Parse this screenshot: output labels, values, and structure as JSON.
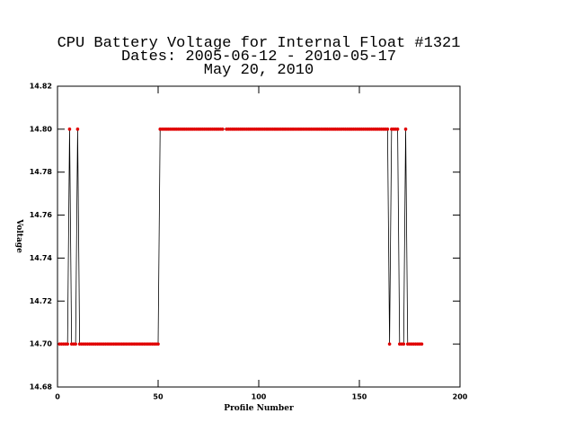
{
  "chart_data": {
    "type": "line",
    "title_lines": [
      "CPU Battery Voltage for Internal Float #1321",
      "Dates:  2005-06-12 -  2010-05-17",
      "May 20, 2010"
    ],
    "x_label": "Profile Number",
    "y_label": "Voltage",
    "xlim": [
      0,
      200
    ],
    "xticks": [
      0,
      50,
      100,
      150,
      200
    ],
    "ylim": [
      14.68,
      14.82
    ],
    "yticks": [
      14.68,
      {
        "value": 14.7,
        "label": "14.70"
      },
      14.72,
      14.74,
      14.76,
      14.78,
      {
        "value": 14.8,
        "label": "14.80"
      },
      14.82
    ],
    "line_color": "#000000",
    "marker_color": "#e00000",
    "x": [
      1,
      2,
      3,
      4,
      5,
      6,
      7,
      8,
      9,
      10,
      11,
      12,
      13,
      14,
      15,
      16,
      17,
      18,
      19,
      20,
      21,
      22,
      23,
      24,
      25,
      26,
      27,
      28,
      29,
      30,
      31,
      32,
      33,
      34,
      35,
      36,
      37,
      38,
      39,
      40,
      41,
      42,
      43,
      44,
      45,
      46,
      47,
      48,
      49,
      50,
      51,
      52,
      53,
      54,
      55,
      56,
      57,
      58,
      59,
      60,
      61,
      62,
      63,
      64,
      65,
      66,
      67,
      68,
      69,
      70,
      71,
      72,
      73,
      74,
      75,
      76,
      77,
      78,
      79,
      80,
      81,
      82,
      84,
      85,
      86,
      87,
      88,
      89,
      90,
      91,
      92,
      93,
      94,
      95,
      96,
      97,
      98,
      99,
      100,
      101,
      102,
      103,
      104,
      105,
      106,
      107,
      108,
      109,
      110,
      111,
      112,
      113,
      114,
      115,
      116,
      117,
      118,
      119,
      120,
      121,
      122,
      123,
      124,
      125,
      126,
      127,
      128,
      129,
      130,
      131,
      132,
      133,
      134,
      135,
      136,
      137,
      138,
      139,
      140,
      141,
      142,
      143,
      144,
      145,
      146,
      147,
      148,
      149,
      150,
      151,
      152,
      153,
      154,
      155,
      156,
      157,
      158,
      159,
      160,
      161,
      162,
      163,
      164,
      165,
      166,
      167,
      168,
      169,
      170,
      171,
      172,
      173,
      174,
      175,
      176,
      177,
      178,
      179,
      180,
      181
    ],
    "values": [
      14.7,
      14.7,
      14.7,
      14.7,
      14.7,
      14.8,
      14.7,
      14.7,
      14.7,
      14.8,
      14.7,
      14.7,
      14.7,
      14.7,
      14.7,
      14.7,
      14.7,
      14.7,
      14.7,
      14.7,
      14.7,
      14.7,
      14.7,
      14.7,
      14.7,
      14.7,
      14.7,
      14.7,
      14.7,
      14.7,
      14.7,
      14.7,
      14.7,
      14.7,
      14.7,
      14.7,
      14.7,
      14.7,
      14.7,
      14.7,
      14.7,
      14.7,
      14.7,
      14.7,
      14.7,
      14.7,
      14.7,
      14.7,
      14.7,
      14.7,
      14.8,
      14.8,
      14.8,
      14.8,
      14.8,
      14.8,
      14.8,
      14.8,
      14.8,
      14.8,
      14.8,
      14.8,
      14.8,
      14.8,
      14.8,
      14.8,
      14.8,
      14.8,
      14.8,
      14.8,
      14.8,
      14.8,
      14.8,
      14.8,
      14.8,
      14.8,
      14.8,
      14.8,
      14.8,
      14.8,
      14.8,
      14.8,
      14.8,
      14.8,
      14.8,
      14.8,
      14.8,
      14.8,
      14.8,
      14.8,
      14.8,
      14.8,
      14.8,
      14.8,
      14.8,
      14.8,
      14.8,
      14.8,
      14.8,
      14.8,
      14.8,
      14.8,
      14.8,
      14.8,
      14.8,
      14.8,
      14.8,
      14.8,
      14.8,
      14.8,
      14.8,
      14.8,
      14.8,
      14.8,
      14.8,
      14.8,
      14.8,
      14.8,
      14.8,
      14.8,
      14.8,
      14.8,
      14.8,
      14.8,
      14.8,
      14.8,
      14.8,
      14.8,
      14.8,
      14.8,
      14.8,
      14.8,
      14.8,
      14.8,
      14.8,
      14.8,
      14.8,
      14.8,
      14.8,
      14.8,
      14.8,
      14.8,
      14.8,
      14.8,
      14.8,
      14.8,
      14.8,
      14.8,
      14.8,
      14.8,
      14.8,
      14.8,
      14.8,
      14.8,
      14.8,
      14.8,
      14.8,
      14.8,
      14.8,
      14.8,
      14.8,
      14.8,
      14.8,
      14.7,
      14.8,
      14.8,
      14.8,
      14.8,
      14.7,
      14.7,
      14.7,
      14.8,
      14.7,
      14.7,
      14.7,
      14.7,
      14.7,
      14.7,
      14.7,
      14.7
    ]
  }
}
